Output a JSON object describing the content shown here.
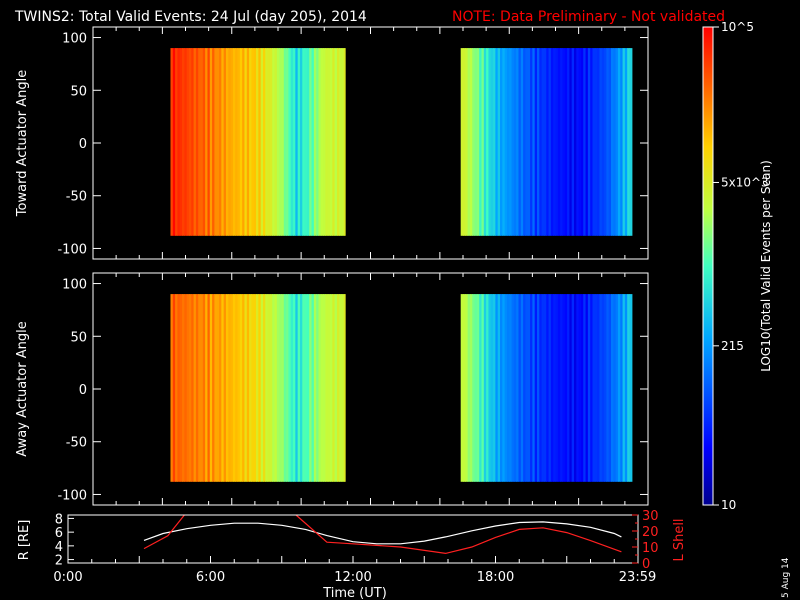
{
  "title": {
    "main": "TWINS2: Total Valid Events: 24 Jul (day 205), 2014",
    "note": "NOTE: Data Preliminary - Not validated",
    "note_color": "#ff0000"
  },
  "stamp": "5 Aug 14",
  "chart_data": [
    {
      "type": "heatmap",
      "ylabel": "Toward Actuator Angle",
      "ylim": [
        -110,
        110
      ],
      "yticks": [
        100,
        50,
        0,
        -50,
        -100
      ],
      "y_extent": [
        -88,
        90
      ],
      "x_hours_domain": [
        0,
        24
      ],
      "segments": [
        {
          "start_hour": 3.35,
          "end_hour": 10.9
        },
        {
          "start_hour": 15.9,
          "end_hour": 23.3
        }
      ],
      "log_counts_profile": {
        "hours": [
          3.35,
          4.0,
          5.0,
          6.0,
          7.0,
          7.6,
          8.2,
          8.8,
          9.3,
          10.0,
          10.9,
          15.9,
          16.5,
          17.0,
          17.5,
          18.2,
          19.0,
          20.0,
          21.0,
          21.6,
          22.2,
          23.0,
          23.3
        ],
        "log10": [
          4.85,
          4.7,
          4.45,
          4.15,
          4.0,
          3.7,
          3.35,
          2.7,
          3.0,
          3.55,
          3.6,
          3.7,
          3.3,
          2.9,
          2.5,
          2.2,
          1.9,
          1.6,
          1.5,
          1.7,
          1.9,
          2.5,
          2.8
        ]
      }
    },
    {
      "type": "heatmap",
      "ylabel": "Away Actuator Angle",
      "ylim": [
        -110,
        110
      ],
      "yticks": [
        100,
        50,
        0,
        -50,
        -100
      ],
      "y_extent": [
        -88,
        90
      ],
      "x_hours_domain": [
        0,
        24
      ],
      "segments": [
        {
          "start_hour": 3.35,
          "end_hour": 10.9
        },
        {
          "start_hour": 15.9,
          "end_hour": 23.3
        }
      ],
      "log_counts_profile": {
        "hours": [
          3.35,
          4.0,
          5.0,
          6.0,
          7.0,
          7.6,
          8.2,
          8.8,
          9.3,
          10.0,
          10.9,
          15.9,
          16.5,
          17.0,
          17.5,
          18.2,
          19.0,
          20.0,
          21.0,
          21.6,
          22.2,
          23.0,
          23.3
        ],
        "log10": [
          4.55,
          4.45,
          4.3,
          4.1,
          3.9,
          3.6,
          3.3,
          2.8,
          3.1,
          3.5,
          3.6,
          3.6,
          3.2,
          2.8,
          2.4,
          2.1,
          1.85,
          1.6,
          1.5,
          1.7,
          1.9,
          2.4,
          2.7
        ]
      }
    },
    {
      "type": "line",
      "ylabel": "R [RE]",
      "y2label": "L Shell",
      "xlabel": "Time (UT)",
      "xticks": [
        "0:00",
        "6:00",
        "12:00",
        "18:00",
        "23:59"
      ],
      "xtick_hours": [
        0,
        6,
        12,
        18,
        23.98
      ],
      "ylim": [
        1.5,
        8.5
      ],
      "yticks": [
        2,
        4,
        6,
        8
      ],
      "y2lim": [
        0,
        30
      ],
      "y2ticks": [
        30,
        20,
        10,
        0
      ],
      "y2ticks_extra": [
        25,
        15,
        5
      ],
      "series": [
        {
          "color": "#ffffff",
          "axis": "left",
          "x": [
            3.2,
            4.0,
            5.0,
            6.0,
            7.0,
            8.0,
            9.0,
            10.0,
            10.9,
            12.0,
            13.0,
            14.0,
            15.0,
            15.9,
            17.0,
            18.0,
            19.0,
            20.0,
            21.0,
            22.0,
            23.0,
            23.3
          ],
          "y": [
            4.8,
            5.8,
            6.5,
            7.0,
            7.3,
            7.3,
            7.0,
            6.4,
            5.5,
            4.6,
            4.3,
            4.3,
            4.7,
            5.3,
            6.2,
            6.9,
            7.4,
            7.5,
            7.2,
            6.7,
            5.8,
            5.3
          ]
        },
        {
          "color": "#ff2020",
          "axis": "right",
          "segments": [
            {
              "x": [
                3.2,
                4.2,
                4.9
              ],
              "y": [
                9,
                17,
                30
              ]
            },
            {
              "x": [
                9.6,
                10.9,
                12.0,
                14.0,
                15.9,
                17.0,
                18.0,
                19.0,
                20.0,
                21.0,
                22.0,
                23.3
              ],
              "y": [
                30,
                13,
                12,
                10,
                6,
                10,
                16,
                21,
                22,
                19,
                14,
                7
              ]
            }
          ]
        }
      ]
    }
  ],
  "colorbar": {
    "ylabel": "LOG10(Total Valid Events per Scan)",
    "log_range": [
      1,
      5
    ],
    "labels": [
      {
        "text": "10^5",
        "log": 5
      },
      {
        "text": "5x10^3",
        "log": 3.699
      },
      {
        "text": "215",
        "log": 2.332
      },
      {
        "text": "10",
        "log": 1
      }
    ]
  }
}
